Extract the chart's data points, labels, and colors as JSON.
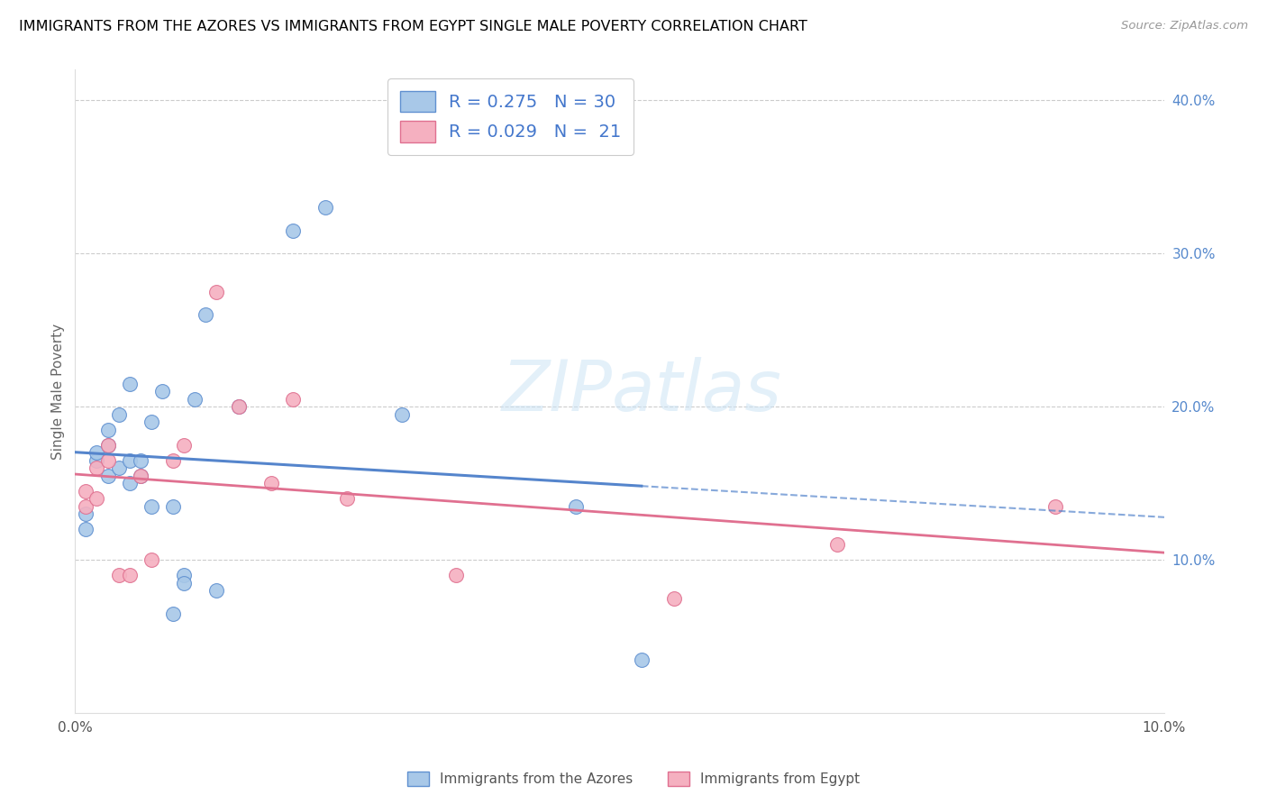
{
  "title": "IMMIGRANTS FROM THE AZORES VS IMMIGRANTS FROM EGYPT SINGLE MALE POVERTY CORRELATION CHART",
  "source": "Source: ZipAtlas.com",
  "ylabel": "Single Male Poverty",
  "xlim": [
    0.0,
    0.1
  ],
  "ylim": [
    0.0,
    0.42
  ],
  "legend_label1": "Immigrants from the Azores",
  "legend_label2": "Immigrants from Egypt",
  "r1": "0.275",
  "n1": "30",
  "r2": "0.029",
  "n2": "21",
  "color_blue": "#a8c8e8",
  "color_pink": "#f5b0c0",
  "edge_blue": "#6090d0",
  "edge_pink": "#e07090",
  "line_blue": "#5585cc",
  "line_pink": "#e07090",
  "watermark": "ZIPatlas",
  "azores_x": [
    0.001,
    0.001,
    0.002,
    0.002,
    0.003,
    0.003,
    0.003,
    0.004,
    0.004,
    0.005,
    0.005,
    0.005,
    0.006,
    0.006,
    0.007,
    0.007,
    0.008,
    0.009,
    0.009,
    0.01,
    0.01,
    0.011,
    0.012,
    0.013,
    0.015,
    0.02,
    0.023,
    0.03,
    0.046,
    0.052
  ],
  "azores_y": [
    0.13,
    0.12,
    0.165,
    0.17,
    0.175,
    0.185,
    0.155,
    0.16,
    0.195,
    0.15,
    0.165,
    0.215,
    0.155,
    0.165,
    0.19,
    0.135,
    0.21,
    0.135,
    0.065,
    0.09,
    0.085,
    0.205,
    0.26,
    0.08,
    0.2,
    0.315,
    0.33,
    0.195,
    0.135,
    0.035
  ],
  "egypt_x": [
    0.001,
    0.001,
    0.002,
    0.002,
    0.003,
    0.003,
    0.004,
    0.005,
    0.006,
    0.007,
    0.009,
    0.01,
    0.013,
    0.015,
    0.018,
    0.02,
    0.025,
    0.035,
    0.055,
    0.07,
    0.09
  ],
  "egypt_y": [
    0.135,
    0.145,
    0.14,
    0.16,
    0.165,
    0.175,
    0.09,
    0.09,
    0.155,
    0.1,
    0.165,
    0.175,
    0.275,
    0.2,
    0.15,
    0.205,
    0.14,
    0.09,
    0.075,
    0.11,
    0.135
  ]
}
